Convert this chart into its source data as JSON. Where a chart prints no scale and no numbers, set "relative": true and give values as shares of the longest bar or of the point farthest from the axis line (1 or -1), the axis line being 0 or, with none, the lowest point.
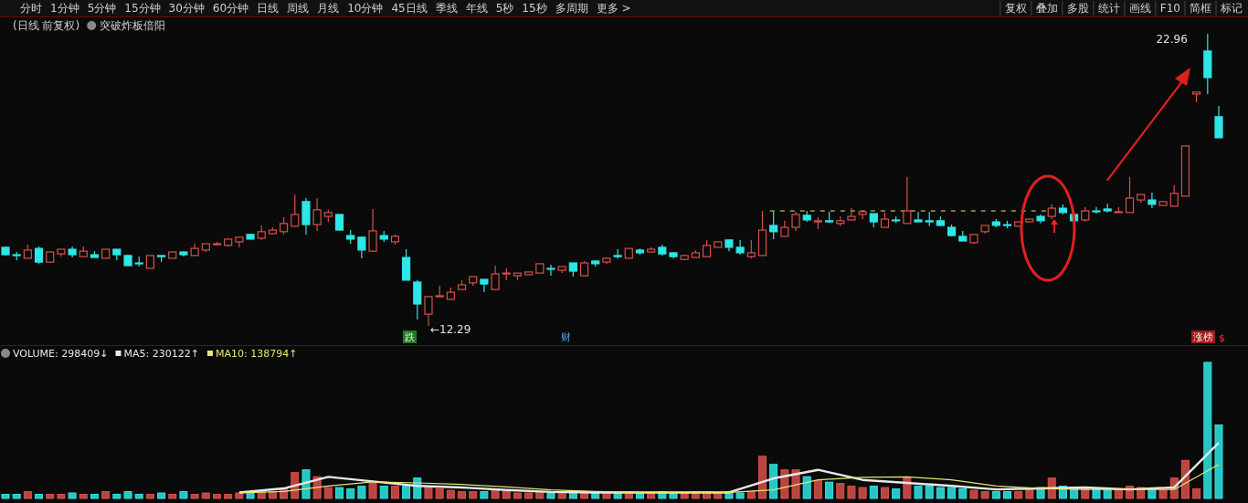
{
  "chart_data": [
    {
      "type": "other",
      "annotations": [
        "分时",
        "1分钟",
        "5分钟",
        "15分钟",
        "30分钟",
        "60分钟",
        "日线",
        "周线",
        "月线",
        "10分钟",
        "45日线",
        "季线",
        "年线",
        "5秒",
        "15秒",
        "多周期",
        "更多 >"
      ]
    },
    {
      "type": "other",
      "annotations": [
        "复权",
        "叠加",
        "多股",
        "统计",
        "画线",
        "F10",
        "简框",
        "标记"
      ]
    },
    {
      "type": "candlestick",
      "title": "(日线 前复权)",
      "subtitle": "突破炸板倍阳",
      "categories": [
        null,
        null,
        null,
        null,
        null,
        null,
        null,
        null,
        null,
        null,
        null,
        null,
        null,
        null,
        null,
        null,
        null,
        null,
        null,
        null,
        null,
        null,
        null,
        null,
        null,
        null,
        null,
        null,
        null,
        null,
        null,
        null,
        null,
        null,
        null,
        null,
        null,
        null,
        null,
        null,
        null,
        null,
        null,
        null,
        null,
        null,
        null,
        null,
        null,
        null,
        null,
        null,
        null,
        null,
        null,
        null,
        null,
        null,
        null,
        null,
        null,
        null,
        null,
        null,
        null,
        null,
        null,
        null,
        null,
        null,
        null,
        null,
        null,
        null,
        null,
        null,
        null,
        null,
        null,
        null,
        null,
        null,
        null,
        null,
        null,
        null,
        null,
        null,
        null,
        null,
        null,
        null,
        null,
        null,
        null,
        null,
        null,
        null,
        null,
        null,
        null,
        null,
        null,
        null,
        null,
        null,
        null,
        null,
        null,
        null
      ],
      "colors": [
        "#2ee6e6",
        "#2ee6e6",
        "#d9504a",
        "#2ee6e6",
        "#d9504a",
        "#d9504a",
        "#2ee6e6",
        "#d9504a",
        "#2ee6e6",
        "#d9504a",
        "#2ee6e6",
        "#2ee6e6",
        "#2ee6e6",
        "#d9504a",
        "#2ee6e6",
        "#d9504a",
        "#2ee6e6",
        "#d9504a",
        "#d9504a",
        "#d9504a",
        "#d9504a",
        "#d9504a",
        "#2ee6e6",
        "#d9504a",
        "#d9504a",
        "#d9504a",
        "#d9504a",
        "#2ee6e6",
        "#d9504a",
        "#d9504a",
        "#2ee6e6",
        "#2ee6e6",
        "#2ee6e6",
        "#d9504a",
        "#2ee6e6",
        "#d9504a",
        "#2ee6e6",
        "#2ee6e6",
        "#d9504a",
        "#d9504a",
        "#d9504a",
        "#d9504a",
        "#d9504a",
        "#2ee6e6",
        "#d9504a",
        "#d9504a",
        "#d9504a",
        "#d9504a",
        "#d9504a",
        "#2ee6e6",
        "#d9504a",
        "#2ee6e6",
        "#d9504a",
        "#2ee6e6",
        "#d9504a",
        "#2ee6e6",
        "#d9504a",
        "#2ee6e6",
        "#d9504a",
        "#2ee6e6",
        "#2ee6e6",
        "#d9504a",
        "#d9504a",
        "#d9504a",
        "#d9504a",
        "#2ee6e6",
        "#2ee6e6",
        "#d9504a",
        "#d9504a",
        "#2ee6e6",
        "#d9504a",
        "#d9504a",
        "#2ee6e6",
        "#d9504a",
        "#2ee6e6",
        "#d9504a",
        "#d9504a",
        "#d9504a",
        "#2ee6e6",
        "#d9504a",
        "#2ee6e6",
        "#d9504a",
        "#2ee6e6",
        "#2ee6e6",
        "#2ee6e6",
        "#2ee6e6",
        "#2ee6e6",
        "#d9504a",
        "#d9504a",
        "#2ee6e6",
        "#2ee6e6",
        "#d9504a",
        "#d9504a",
        "#2ee6e6",
        "#d9504a",
        "#2ee6e6",
        "#2ee6e6",
        "#d9504a",
        "#2ee6e6",
        "#2ee6e6",
        "#d9504a",
        "#d9504a",
        "#d9504a",
        "#2ee6e6",
        "#d9504a",
        "#d9504a",
        "#d9504a",
        "#d9504a",
        "#2ee6e6",
        "#2ee6e6"
      ],
      "ohlc": [
        [
          15.16,
          15.19,
          14.86,
          14.89
        ],
        [
          14.89,
          14.99,
          14.69,
          14.86
        ],
        [
          14.76,
          15.26,
          14.76,
          15.06
        ],
        [
          15.12,
          15.19,
          14.56,
          14.62
        ],
        [
          14.62,
          14.99,
          14.62,
          14.99
        ],
        [
          14.92,
          15.09,
          14.82,
          15.09
        ],
        [
          15.09,
          15.19,
          14.79,
          14.89
        ],
        [
          14.82,
          15.19,
          14.82,
          15.02
        ],
        [
          14.89,
          15.02,
          14.79,
          14.79
        ],
        [
          14.76,
          15.09,
          14.76,
          15.09
        ],
        [
          15.09,
          15.09,
          14.69,
          14.89
        ],
        [
          14.86,
          14.89,
          14.49,
          14.49
        ],
        [
          14.59,
          14.82,
          14.46,
          14.56
        ],
        [
          14.39,
          14.86,
          14.39,
          14.86
        ],
        [
          14.86,
          14.86,
          14.62,
          14.82
        ],
        [
          14.76,
          14.99,
          14.76,
          14.99
        ],
        [
          14.99,
          15.02,
          14.82,
          14.89
        ],
        [
          14.86,
          15.29,
          14.86,
          15.12
        ],
        [
          15.06,
          15.29,
          14.99,
          15.29
        ],
        [
          15.26,
          15.36,
          15.23,
          15.29
        ],
        [
          15.23,
          15.49,
          15.19,
          15.46
        ],
        [
          15.36,
          15.53,
          15.16,
          15.53
        ],
        [
          15.63,
          15.66,
          15.46,
          15.46
        ],
        [
          15.49,
          15.96,
          15.43,
          15.73
        ],
        [
          15.66,
          15.89,
          15.66,
          15.79
        ],
        [
          15.73,
          16.26,
          15.63,
          16.03
        ],
        [
          15.93,
          17.09,
          15.93,
          16.36
        ],
        [
          16.83,
          16.96,
          15.63,
          15.99
        ],
        [
          15.99,
          16.96,
          15.76,
          16.53
        ],
        [
          16.29,
          16.53,
          16.09,
          16.43
        ],
        [
          16.36,
          16.36,
          15.76,
          15.79
        ],
        [
          15.59,
          15.79,
          15.29,
          15.46
        ],
        [
          15.53,
          15.53,
          14.76,
          15.06
        ],
        [
          15.02,
          16.56,
          15.02,
          15.76
        ],
        [
          15.59,
          15.76,
          15.36,
          15.46
        ],
        [
          15.36,
          15.63,
          15.26,
          15.56
        ],
        [
          14.79,
          15.09,
          13.96,
          13.96
        ],
        [
          13.89,
          13.96,
          12.52,
          13.09
        ],
        [
          12.72,
          13.36,
          12.29,
          13.36
        ],
        [
          13.36,
          13.76,
          13.36,
          13.39
        ],
        [
          13.26,
          13.69,
          13.26,
          13.52
        ],
        [
          13.62,
          13.96,
          13.62,
          13.79
        ],
        [
          13.86,
          14.09,
          13.76,
          14.09
        ],
        [
          13.99,
          13.99,
          13.52,
          13.82
        ],
        [
          13.62,
          14.49,
          13.62,
          14.19
        ],
        [
          14.19,
          14.39,
          13.96,
          14.22
        ],
        [
          14.12,
          14.22,
          13.96,
          14.22
        ],
        [
          14.16,
          14.26,
          14.16,
          14.26
        ],
        [
          14.22,
          14.56,
          14.22,
          14.56
        ],
        [
          14.39,
          14.52,
          14.12,
          14.36
        ],
        [
          14.32,
          14.46,
          14.22,
          14.46
        ],
        [
          14.59,
          14.59,
          14.09,
          14.29
        ],
        [
          14.12,
          14.66,
          14.12,
          14.59
        ],
        [
          14.66,
          14.66,
          14.46,
          14.56
        ],
        [
          14.62,
          14.79,
          14.56,
          14.76
        ],
        [
          14.86,
          15.09,
          14.76,
          14.82
        ],
        [
          14.76,
          15.12,
          14.76,
          15.12
        ],
        [
          15.06,
          15.12,
          14.89,
          14.96
        ],
        [
          14.99,
          15.16,
          14.96,
          15.09
        ],
        [
          15.16,
          15.26,
          14.86,
          14.92
        ],
        [
          14.96,
          14.96,
          14.76,
          14.82
        ],
        [
          14.72,
          14.89,
          14.69,
          14.86
        ],
        [
          14.79,
          15.06,
          14.79,
          14.96
        ],
        [
          14.82,
          15.43,
          14.82,
          15.23
        ],
        [
          15.16,
          15.36,
          15.16,
          15.36
        ],
        [
          15.43,
          15.43,
          15.02,
          15.16
        ],
        [
          15.16,
          15.43,
          14.89,
          14.96
        ],
        [
          14.82,
          15.43,
          14.76,
          14.96
        ],
        [
          14.86,
          16.49,
          14.86,
          15.79
        ],
        [
          15.96,
          16.46,
          15.46,
          15.73
        ],
        [
          15.56,
          16.13,
          15.56,
          15.89
        ],
        [
          15.89,
          16.46,
          15.76,
          16.36
        ],
        [
          16.33,
          16.49,
          16.09,
          16.16
        ],
        [
          16.09,
          16.26,
          15.83,
          16.13
        ],
        [
          16.13,
          16.46,
          16.06,
          16.09
        ],
        [
          16.03,
          16.29,
          15.93,
          16.13
        ],
        [
          16.16,
          16.59,
          16.16,
          16.29
        ],
        [
          16.36,
          16.46,
          16.19,
          16.46
        ],
        [
          16.39,
          16.39,
          15.89,
          16.09
        ],
        [
          15.89,
          16.43,
          15.89,
          16.19
        ],
        [
          16.16,
          16.29,
          16.06,
          16.13
        ],
        [
          16.03,
          17.73,
          16.03,
          16.49
        ],
        [
          16.16,
          16.46,
          16.09,
          16.09
        ],
        [
          16.13,
          16.46,
          15.93,
          16.09
        ],
        [
          16.13,
          16.29,
          15.93,
          15.96
        ],
        [
          15.89,
          15.99,
          15.56,
          15.59
        ],
        [
          15.56,
          15.76,
          15.39,
          15.39
        ],
        [
          15.33,
          15.63,
          15.29,
          15.63
        ],
        [
          15.73,
          15.96,
          15.66,
          15.96
        ],
        [
          16.09,
          16.19,
          15.89,
          15.96
        ],
        [
          15.99,
          16.13,
          15.86,
          15.96
        ],
        [
          15.93,
          16.09,
          15.93,
          16.09
        ],
        [
          16.09,
          16.19,
          16.09,
          16.19
        ],
        [
          16.29,
          16.36,
          16.03,
          16.13
        ],
        [
          16.29,
          16.73,
          16.19,
          16.59
        ],
        [
          16.59,
          16.73,
          16.36,
          16.43
        ],
        [
          16.36,
          16.36,
          16.09,
          16.13
        ],
        [
          16.16,
          16.63,
          16.09,
          16.49
        ],
        [
          16.49,
          16.63,
          16.39,
          16.46
        ],
        [
          16.56,
          16.76,
          16.43,
          16.49
        ],
        [
          16.43,
          16.63,
          16.43,
          16.46
        ],
        [
          16.43,
          17.73,
          16.43,
          16.96
        ],
        [
          16.89,
          17.09,
          16.79,
          17.09
        ],
        [
          16.89,
          17.16,
          16.59,
          16.73
        ],
        [
          16.69,
          16.83,
          16.69,
          16.83
        ],
        [
          16.66,
          17.43,
          16.66,
          17.13
        ],
        [
          17.03,
          18.86,
          17.03,
          18.86
        ],
        [
          20.76,
          20.83,
          20.46,
          20.83
        ],
        [
          22.33,
          22.96,
          20.76,
          21.36
        ],
        [
          19.93,
          20.33,
          19.16,
          19.16
        ]
      ],
      "ref_lines": [
        {
          "axis": "y",
          "value": 16.49,
          "color": "#e6e673",
          "line_style": "dashed"
        }
      ],
      "annotations": [
        "←12.29",
        "22.96",
        "跌",
        "财",
        "涨榜",
        "$"
      ]
    },
    {
      "type": "bar",
      "relative": true,
      "title": "VOLUME: 298409↓",
      "categories": [
        null,
        null,
        null,
        null,
        null,
        null,
        null,
        null,
        null,
        null,
        null,
        null,
        null,
        null,
        null,
        null,
        null,
        null,
        null,
        null,
        null,
        null,
        null,
        null,
        null,
        null,
        null,
        null,
        null,
        null,
        null,
        null,
        null,
        null,
        null,
        null,
        null,
        null,
        null,
        null,
        null,
        null,
        null,
        null,
        null,
        null,
        null,
        null,
        null,
        null,
        null,
        null,
        null,
        null,
        null,
        null,
        null,
        null,
        null,
        null,
        null,
        null,
        null,
        null,
        null,
        null,
        null,
        null,
        null,
        null,
        null,
        null,
        null,
        null,
        null,
        null,
        null,
        null,
        null,
        null,
        null,
        null,
        null,
        null,
        null,
        null,
        null,
        null,
        null,
        null,
        null,
        null,
        null,
        null,
        null,
        null,
        null,
        null,
        null,
        null,
        null,
        null,
        null,
        null,
        null,
        null,
        null,
        null,
        null,
        null
      ],
      "values": [
        0.03,
        0.03,
        0.05,
        0.03,
        0.03,
        0.03,
        0.04,
        0.03,
        0.03,
        0.05,
        0.03,
        0.05,
        0.03,
        0.03,
        0.04,
        0.03,
        0.05,
        0.03,
        0.04,
        0.03,
        0.03,
        0.04,
        0.04,
        0.05,
        0.05,
        0.07,
        0.19,
        0.21,
        0.16,
        0.08,
        0.08,
        0.07,
        0.09,
        0.11,
        0.09,
        0.09,
        0.09,
        0.15,
        0.08,
        0.07,
        0.06,
        0.05,
        0.05,
        0.05,
        0.07,
        0.05,
        0.04,
        0.04,
        0.05,
        0.04,
        0.05,
        0.04,
        0.05,
        0.04,
        0.05,
        0.04,
        0.05,
        0.04,
        0.04,
        0.05,
        0.04,
        0.04,
        0.05,
        0.05,
        0.04,
        0.05,
        0.04,
        0.05,
        0.31,
        0.25,
        0.21,
        0.21,
        0.16,
        0.13,
        0.12,
        0.11,
        0.09,
        0.08,
        0.09,
        0.08,
        0.07,
        0.15,
        0.09,
        0.09,
        0.08,
        0.08,
        0.07,
        0.06,
        0.05,
        0.05,
        0.05,
        0.05,
        0.07,
        0.08,
        0.15,
        0.09,
        0.08,
        0.07,
        0.07,
        0.06,
        0.06,
        0.09,
        0.08,
        0.07,
        0.06,
        0.15,
        0.28,
        0.07,
        1,
        0.54
      ],
      "colors": [
        "#2ee6e6",
        "#2ee6e6",
        "#d9504a",
        "#2ee6e6",
        "#d9504a",
        "#d9504a",
        "#2ee6e6",
        "#d9504a",
        "#2ee6e6",
        "#d9504a",
        "#2ee6e6",
        "#2ee6e6",
        "#2ee6e6",
        "#d9504a",
        "#2ee6e6",
        "#d9504a",
        "#2ee6e6",
        "#d9504a",
        "#d9504a",
        "#d9504a",
        "#d9504a",
        "#d9504a",
        "#2ee6e6",
        "#d9504a",
        "#d9504a",
        "#d9504a",
        "#d9504a",
        "#2ee6e6",
        "#d9504a",
        "#d9504a",
        "#2ee6e6",
        "#2ee6e6",
        "#2ee6e6",
        "#d9504a",
        "#2ee6e6",
        "#d9504a",
        "#2ee6e6",
        "#2ee6e6",
        "#d9504a",
        "#d9504a",
        "#d9504a",
        "#d9504a",
        "#d9504a",
        "#2ee6e6",
        "#d9504a",
        "#d9504a",
        "#d9504a",
        "#d9504a",
        "#d9504a",
        "#2ee6e6",
        "#d9504a",
        "#2ee6e6",
        "#d9504a",
        "#2ee6e6",
        "#d9504a",
        "#2ee6e6",
        "#d9504a",
        "#2ee6e6",
        "#d9504a",
        "#2ee6e6",
        "#2ee6e6",
        "#d9504a",
        "#d9504a",
        "#d9504a",
        "#d9504a",
        "#2ee6e6",
        "#2ee6e6",
        "#d9504a",
        "#d9504a",
        "#2ee6e6",
        "#d9504a",
        "#d9504a",
        "#2ee6e6",
        "#d9504a",
        "#2ee6e6",
        "#d9504a",
        "#d9504a",
        "#d9504a",
        "#2ee6e6",
        "#d9504a",
        "#2ee6e6",
        "#d9504a",
        "#2ee6e6",
        "#2ee6e6",
        "#2ee6e6",
        "#2ee6e6",
        "#2ee6e6",
        "#d9504a",
        "#d9504a",
        "#2ee6e6",
        "#2ee6e6",
        "#d9504a",
        "#d9504a",
        "#2ee6e6",
        "#d9504a",
        "#2ee6e6",
        "#2ee6e6",
        "#d9504a",
        "#2ee6e6",
        "#2ee6e6",
        "#d9504a",
        "#d9504a",
        "#d9504a",
        "#2ee6e6",
        "#d9504a",
        "#d9504a",
        "#d9504a",
        "#d9504a",
        "#2ee6e6",
        "#2ee6e6"
      ]
    },
    {
      "type": "line",
      "relative": true,
      "legend": "top left",
      "categories": [
        null,
        null,
        null,
        null,
        null,
        null,
        null,
        null,
        null,
        null,
        null,
        null,
        null,
        null,
        null,
        null,
        null,
        null,
        null,
        null,
        null,
        null,
        null,
        null,
        null,
        null,
        null,
        null
      ],
      "series": [
        {
          "name": "MA5: 230122↑",
          "color": "#e8e8e8",
          "values": [
            null,
            null,
            null,
            null,
            null,
            0.01,
            0.09,
            0.32,
            0.23,
            0.14,
            0.11,
            0.06,
            0.02,
            0.01,
            0.01,
            0.01,
            0.01,
            0.29,
            0.46,
            0.26,
            0.2,
            0.14,
            0.07,
            0.09,
            0.11,
            0.07,
            0.11,
            1
          ]
        },
        {
          "name": "MA10: 138794↑",
          "color": "#e6e673",
          "values": [
            null,
            null,
            null,
            null,
            null,
            0,
            0.03,
            0.14,
            0.22,
            0.2,
            0.17,
            0.12,
            0.06,
            0.03,
            0.01,
            0.01,
            0.01,
            0.06,
            0.26,
            0.31,
            0.32,
            0.26,
            0.14,
            0.09,
            0.07,
            0.07,
            0.07,
            0.57
          ]
        }
      ]
    }
  ]
}
